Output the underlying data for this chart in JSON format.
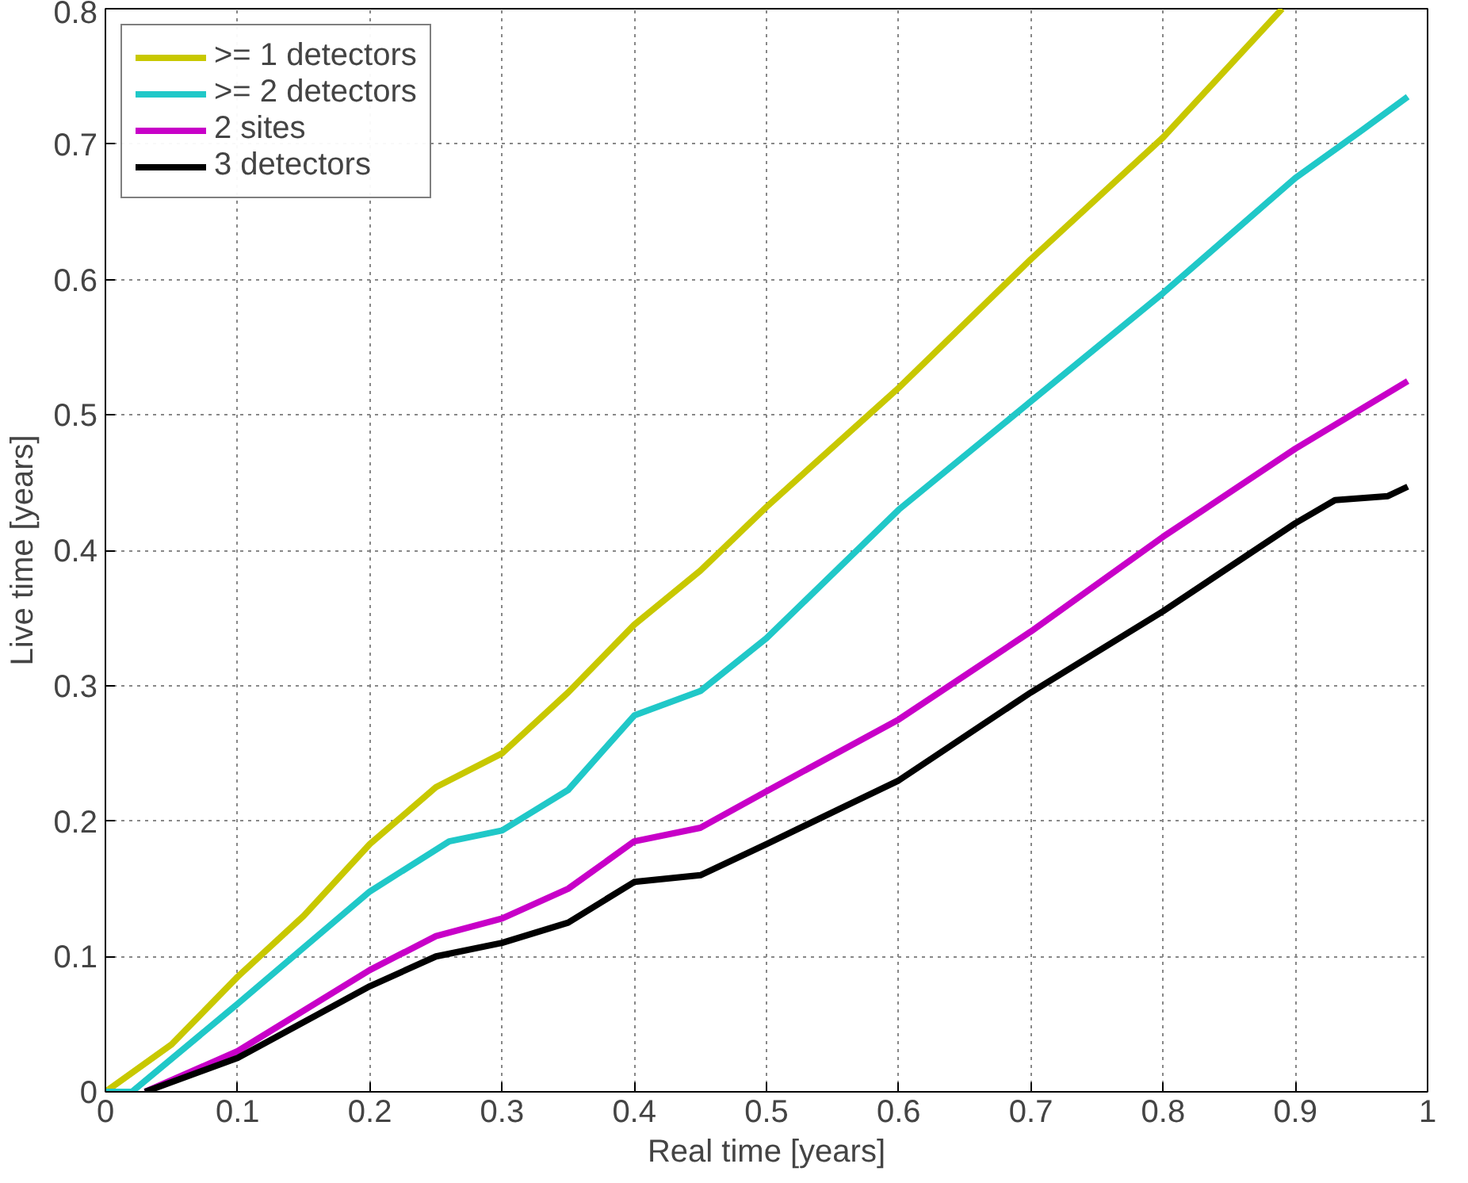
{
  "chart_data": {
    "type": "line",
    "xlabel": "Real time [years]",
    "ylabel": "Live time [years]",
    "xlim": [
      0,
      1
    ],
    "ylim": [
      0,
      0.8
    ],
    "xticks": [
      0,
      0.1,
      0.2,
      0.3,
      0.4,
      0.5,
      0.6,
      0.7,
      0.8,
      0.9,
      1
    ],
    "yticks": [
      0,
      0.1,
      0.2,
      0.3,
      0.4,
      0.5,
      0.6,
      0.7,
      0.8
    ],
    "grid": true,
    "legend": "top left",
    "line_style": "solid",
    "marker": "none",
    "series": [
      {
        "name": ">= 1 detectors",
        "color": "#c8c800",
        "x": [
          0,
          0.05,
          0.1,
          0.15,
          0.2,
          0.25,
          0.3,
          0.35,
          0.4,
          0.45,
          0.5,
          0.6,
          0.7,
          0.8,
          0.89
        ],
        "values": [
          0,
          0.035,
          0.085,
          0.13,
          0.183,
          0.225,
          0.25,
          0.295,
          0.345,
          0.385,
          0.432,
          0.52,
          0.615,
          0.705,
          0.8
        ]
      },
      {
        "name": ">= 2 detectors",
        "color": "#20c8c8",
        "x": [
          0,
          0.02,
          0.1,
          0.2,
          0.26,
          0.3,
          0.35,
          0.4,
          0.45,
          0.5,
          0.6,
          0.7,
          0.8,
          0.9,
          0.95,
          0.985
        ],
        "values": [
          0,
          0,
          0.065,
          0.148,
          0.185,
          0.193,
          0.223,
          0.278,
          0.296,
          0.335,
          0.43,
          0.51,
          0.59,
          0.675,
          0.71,
          0.735
        ]
      },
      {
        "name": "2 sites",
        "color": "#c800c8",
        "x": [
          0.03,
          0.1,
          0.2,
          0.25,
          0.3,
          0.35,
          0.4,
          0.45,
          0.5,
          0.6,
          0.7,
          0.8,
          0.9,
          0.985
        ],
        "values": [
          0,
          0.03,
          0.09,
          0.115,
          0.128,
          0.15,
          0.185,
          0.195,
          0.222,
          0.275,
          0.34,
          0.41,
          0.475,
          0.525
        ]
      },
      {
        "name": "3 detectors",
        "color": "#000000",
        "x": [
          0.03,
          0.1,
          0.2,
          0.25,
          0.3,
          0.35,
          0.4,
          0.45,
          0.5,
          0.6,
          0.7,
          0.8,
          0.9,
          0.93,
          0.97,
          0.985
        ],
        "values": [
          0,
          0.025,
          0.078,
          0.1,
          0.11,
          0.125,
          0.155,
          0.16,
          0.183,
          0.23,
          0.295,
          0.355,
          0.42,
          0.437,
          0.44,
          0.447
        ]
      }
    ]
  }
}
